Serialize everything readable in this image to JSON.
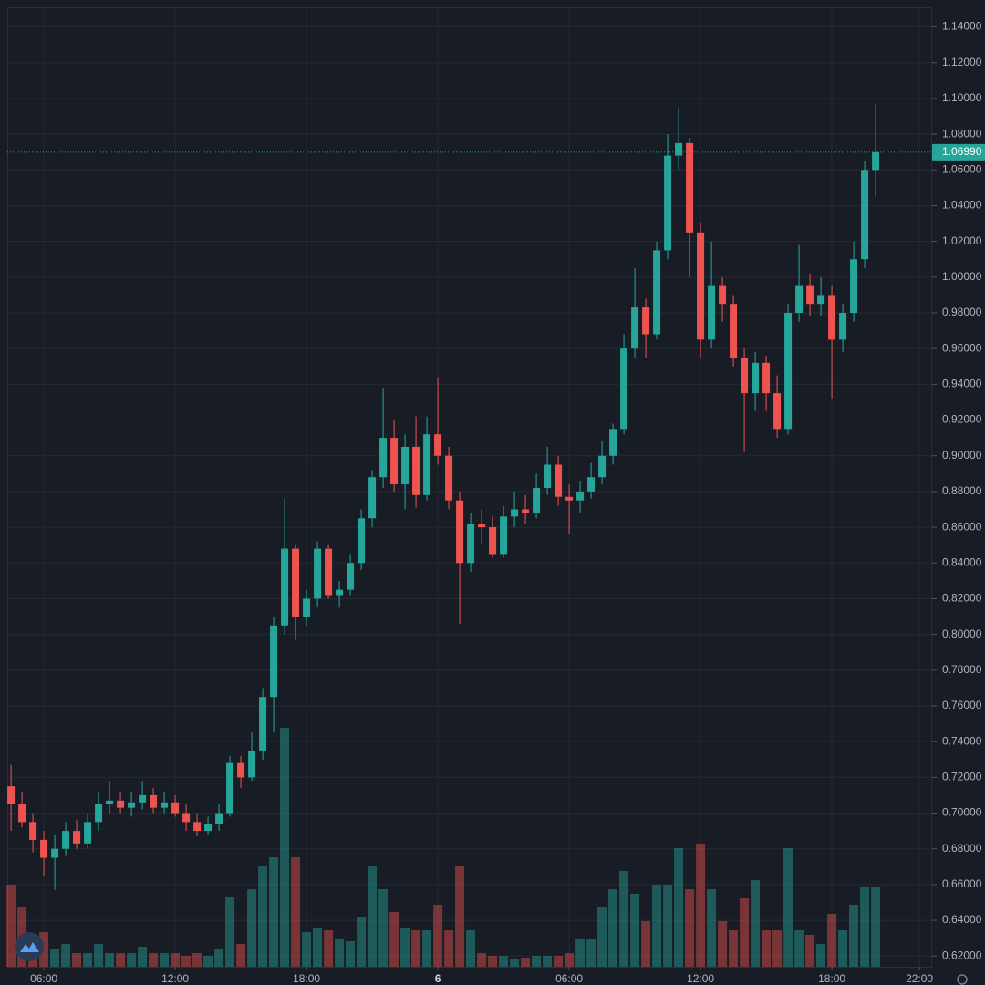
{
  "chart_data": {
    "type": "candlestick",
    "x": [
      4.5,
      5,
      5.5,
      6,
      6.5,
      7,
      7.5,
      8,
      8.5,
      9,
      9.5,
      10,
      10.5,
      11,
      11.5,
      12,
      12.5,
      13,
      13.5,
      14,
      14.5,
      15,
      15.5,
      16,
      16.5,
      17,
      17.5,
      18,
      18.5,
      19,
      19.5,
      20,
      20.5,
      21,
      21.5,
      22,
      22.5,
      23,
      23.5,
      24,
      24.5,
      25,
      25.5,
      26,
      26.5,
      27,
      27.5,
      28,
      28.5,
      29,
      29.5,
      30,
      30.5,
      31,
      31.5,
      32,
      32.5,
      33,
      33.5,
      34,
      34.5,
      35,
      35.5,
      36,
      36.5,
      37,
      37.5,
      38,
      38.5,
      39,
      39.5,
      40,
      40.5,
      41,
      41.5,
      42,
      42.5,
      43,
      43.5,
      44
    ],
    "open": [
      0.715,
      0.705,
      0.695,
      0.685,
      0.675,
      0.68,
      0.69,
      0.683,
      0.695,
      0.705,
      0.707,
      0.703,
      0.706,
      0.71,
      0.703,
      0.706,
      0.7,
      0.695,
      0.69,
      0.694,
      0.7,
      0.728,
      0.72,
      0.735,
      0.765,
      0.805,
      0.848,
      0.81,
      0.82,
      0.848,
      0.822,
      0.825,
      0.84,
      0.865,
      0.888,
      0.91,
      0.884,
      0.905,
      0.878,
      0.912,
      0.9,
      0.875,
      0.84,
      0.862,
      0.86,
      0.845,
      0.866,
      0.87,
      0.868,
      0.882,
      0.895,
      0.877,
      0.875,
      0.88,
      0.888,
      0.9,
      0.915,
      0.96,
      0.983,
      0.968,
      1.015,
      1.068,
      1.075,
      1.025,
      0.965,
      0.995,
      0.985,
      0.955,
      0.935,
      0.952,
      0.935,
      0.915,
      0.98,
      0.995,
      0.985,
      0.99,
      0.965,
      0.98,
      1.01,
      1.06
    ],
    "high": [
      0.727,
      0.712,
      0.7,
      0.69,
      0.688,
      0.695,
      0.696,
      0.7,
      0.712,
      0.718,
      0.712,
      0.712,
      0.718,
      0.714,
      0.712,
      0.71,
      0.705,
      0.7,
      0.698,
      0.705,
      0.732,
      0.732,
      0.745,
      0.77,
      0.81,
      0.876,
      0.85,
      0.825,
      0.852,
      0.85,
      0.83,
      0.845,
      0.87,
      0.892,
      0.938,
      0.92,
      0.912,
      0.922,
      0.922,
      0.944,
      0.905,
      0.88,
      0.868,
      0.87,
      0.866,
      0.872,
      0.88,
      0.878,
      0.89,
      0.905,
      0.9,
      0.884,
      0.886,
      0.896,
      0.908,
      0.918,
      0.968,
      1.005,
      0.988,
      1.02,
      1.08,
      1.095,
      1.078,
      1.03,
      1.02,
      1.0,
      0.99,
      0.96,
      0.958,
      0.956,
      0.945,
      0.985,
      1.018,
      1.002,
      1.0,
      0.995,
      0.985,
      1.02,
      1.065,
      1.097
    ],
    "low": [
      0.69,
      0.692,
      0.678,
      0.665,
      0.657,
      0.676,
      0.68,
      0.68,
      0.69,
      0.7,
      0.7,
      0.698,
      0.702,
      0.7,
      0.7,
      0.698,
      0.69,
      0.687,
      0.688,
      0.69,
      0.698,
      0.714,
      0.718,
      0.73,
      0.745,
      0.8,
      0.797,
      0.805,
      0.815,
      0.82,
      0.815,
      0.822,
      0.836,
      0.86,
      0.882,
      0.88,
      0.87,
      0.871,
      0.875,
      0.895,
      0.87,
      0.806,
      0.835,
      0.85,
      0.843,
      0.843,
      0.86,
      0.862,
      0.865,
      0.878,
      0.872,
      0.856,
      0.868,
      0.876,
      0.884,
      0.895,
      0.912,
      0.955,
      0.955,
      0.965,
      1.01,
      1.06,
      1.0,
      0.955,
      0.96,
      0.975,
      0.95,
      0.902,
      0.925,
      0.925,
      0.91,
      0.912,
      0.975,
      0.978,
      0.978,
      0.932,
      0.958,
      0.975,
      1.005,
      1.045
    ],
    "close": [
      0.705,
      0.695,
      0.685,
      0.675,
      0.68,
      0.69,
      0.683,
      0.695,
      0.705,
      0.707,
      0.703,
      0.706,
      0.71,
      0.703,
      0.706,
      0.7,
      0.695,
      0.69,
      0.694,
      0.7,
      0.728,
      0.72,
      0.735,
      0.765,
      0.805,
      0.848,
      0.81,
      0.82,
      0.848,
      0.822,
      0.825,
      0.84,
      0.865,
      0.888,
      0.91,
      0.884,
      0.905,
      0.878,
      0.912,
      0.9,
      0.875,
      0.84,
      0.862,
      0.86,
      0.845,
      0.866,
      0.87,
      0.868,
      0.882,
      0.895,
      0.877,
      0.875,
      0.88,
      0.888,
      0.9,
      0.915,
      0.96,
      0.983,
      0.968,
      1.015,
      1.068,
      1.075,
      1.025,
      0.965,
      0.995,
      0.985,
      0.955,
      0.935,
      0.952,
      0.935,
      0.915,
      0.98,
      0.995,
      0.985,
      0.99,
      0.965,
      0.98,
      1.01,
      1.06,
      1.0699
    ],
    "volume": [
      90,
      65,
      20,
      38,
      20,
      25,
      15,
      15,
      25,
      15,
      15,
      15,
      22,
      15,
      15,
      15,
      12,
      15,
      12,
      20,
      76,
      25,
      85,
      110,
      120,
      262,
      120,
      38,
      42,
      40,
      30,
      28,
      55,
      110,
      85,
      60,
      42,
      40,
      40,
      68,
      40,
      110,
      40,
      15,
      12,
      12,
      8,
      10,
      12,
      12,
      12,
      15,
      30,
      30,
      65,
      85,
      105,
      80,
      50,
      90,
      90,
      130,
      85,
      135,
      85,
      50,
      40,
      75,
      95,
      40,
      40,
      130,
      40,
      35,
      25,
      58,
      40,
      68,
      88,
      88
    ],
    "up_color": "#26a69a",
    "down_color": "#ef5350",
    "xlim": [
      4.33,
      46.58
    ],
    "ylim": [
      0.614,
      1.151
    ],
    "xticks": [
      {
        "value": 6,
        "label": "06:00"
      },
      {
        "value": 12,
        "label": "12:00"
      },
      {
        "value": 18,
        "label": "18:00"
      },
      {
        "value": 24,
        "label": "6"
      },
      {
        "value": 30,
        "label": "06:00"
      },
      {
        "value": 36,
        "label": "12:00"
      },
      {
        "value": 42,
        "label": "18:00"
      },
      {
        "value": 46,
        "label": "22:00"
      }
    ],
    "yticks": [
      {
        "value": 0.62,
        "label": "0.62000"
      },
      {
        "value": 0.64,
        "label": "0.64000"
      },
      {
        "value": 0.66,
        "label": "0.66000"
      },
      {
        "value": 0.68,
        "label": "0.68000"
      },
      {
        "value": 0.7,
        "label": "0.70000"
      },
      {
        "value": 0.72,
        "label": "0.72000"
      },
      {
        "value": 0.74,
        "label": "0.74000"
      },
      {
        "value": 0.76,
        "label": "0.76000"
      },
      {
        "value": 0.78,
        "label": "0.78000"
      },
      {
        "value": 0.8,
        "label": "0.80000"
      },
      {
        "value": 0.82,
        "label": "0.82000"
      },
      {
        "value": 0.84,
        "label": "0.84000"
      },
      {
        "value": 0.86,
        "label": "0.86000"
      },
      {
        "value": 0.88,
        "label": "0.88000"
      },
      {
        "value": 0.9,
        "label": "0.90000"
      },
      {
        "value": 0.92,
        "label": "0.92000"
      },
      {
        "value": 0.94,
        "label": "0.94000"
      },
      {
        "value": 0.96,
        "label": "0.96000"
      },
      {
        "value": 0.98,
        "label": "0.98000"
      },
      {
        "value": 1.0,
        "label": "1.00000"
      },
      {
        "value": 1.02,
        "label": "1.02000"
      },
      {
        "value": 1.04,
        "label": "1.04000"
      },
      {
        "value": 1.06,
        "label": "1.06000"
      },
      {
        "value": 1.08,
        "label": "1.08000"
      },
      {
        "value": 1.1,
        "label": "1.10000"
      },
      {
        "value": 1.12,
        "label": "1.12000"
      },
      {
        "value": 1.14,
        "label": "1.14000"
      }
    ],
    "last_price": {
      "value": 1.0699,
      "label": "1.06990"
    },
    "grid": true
  }
}
